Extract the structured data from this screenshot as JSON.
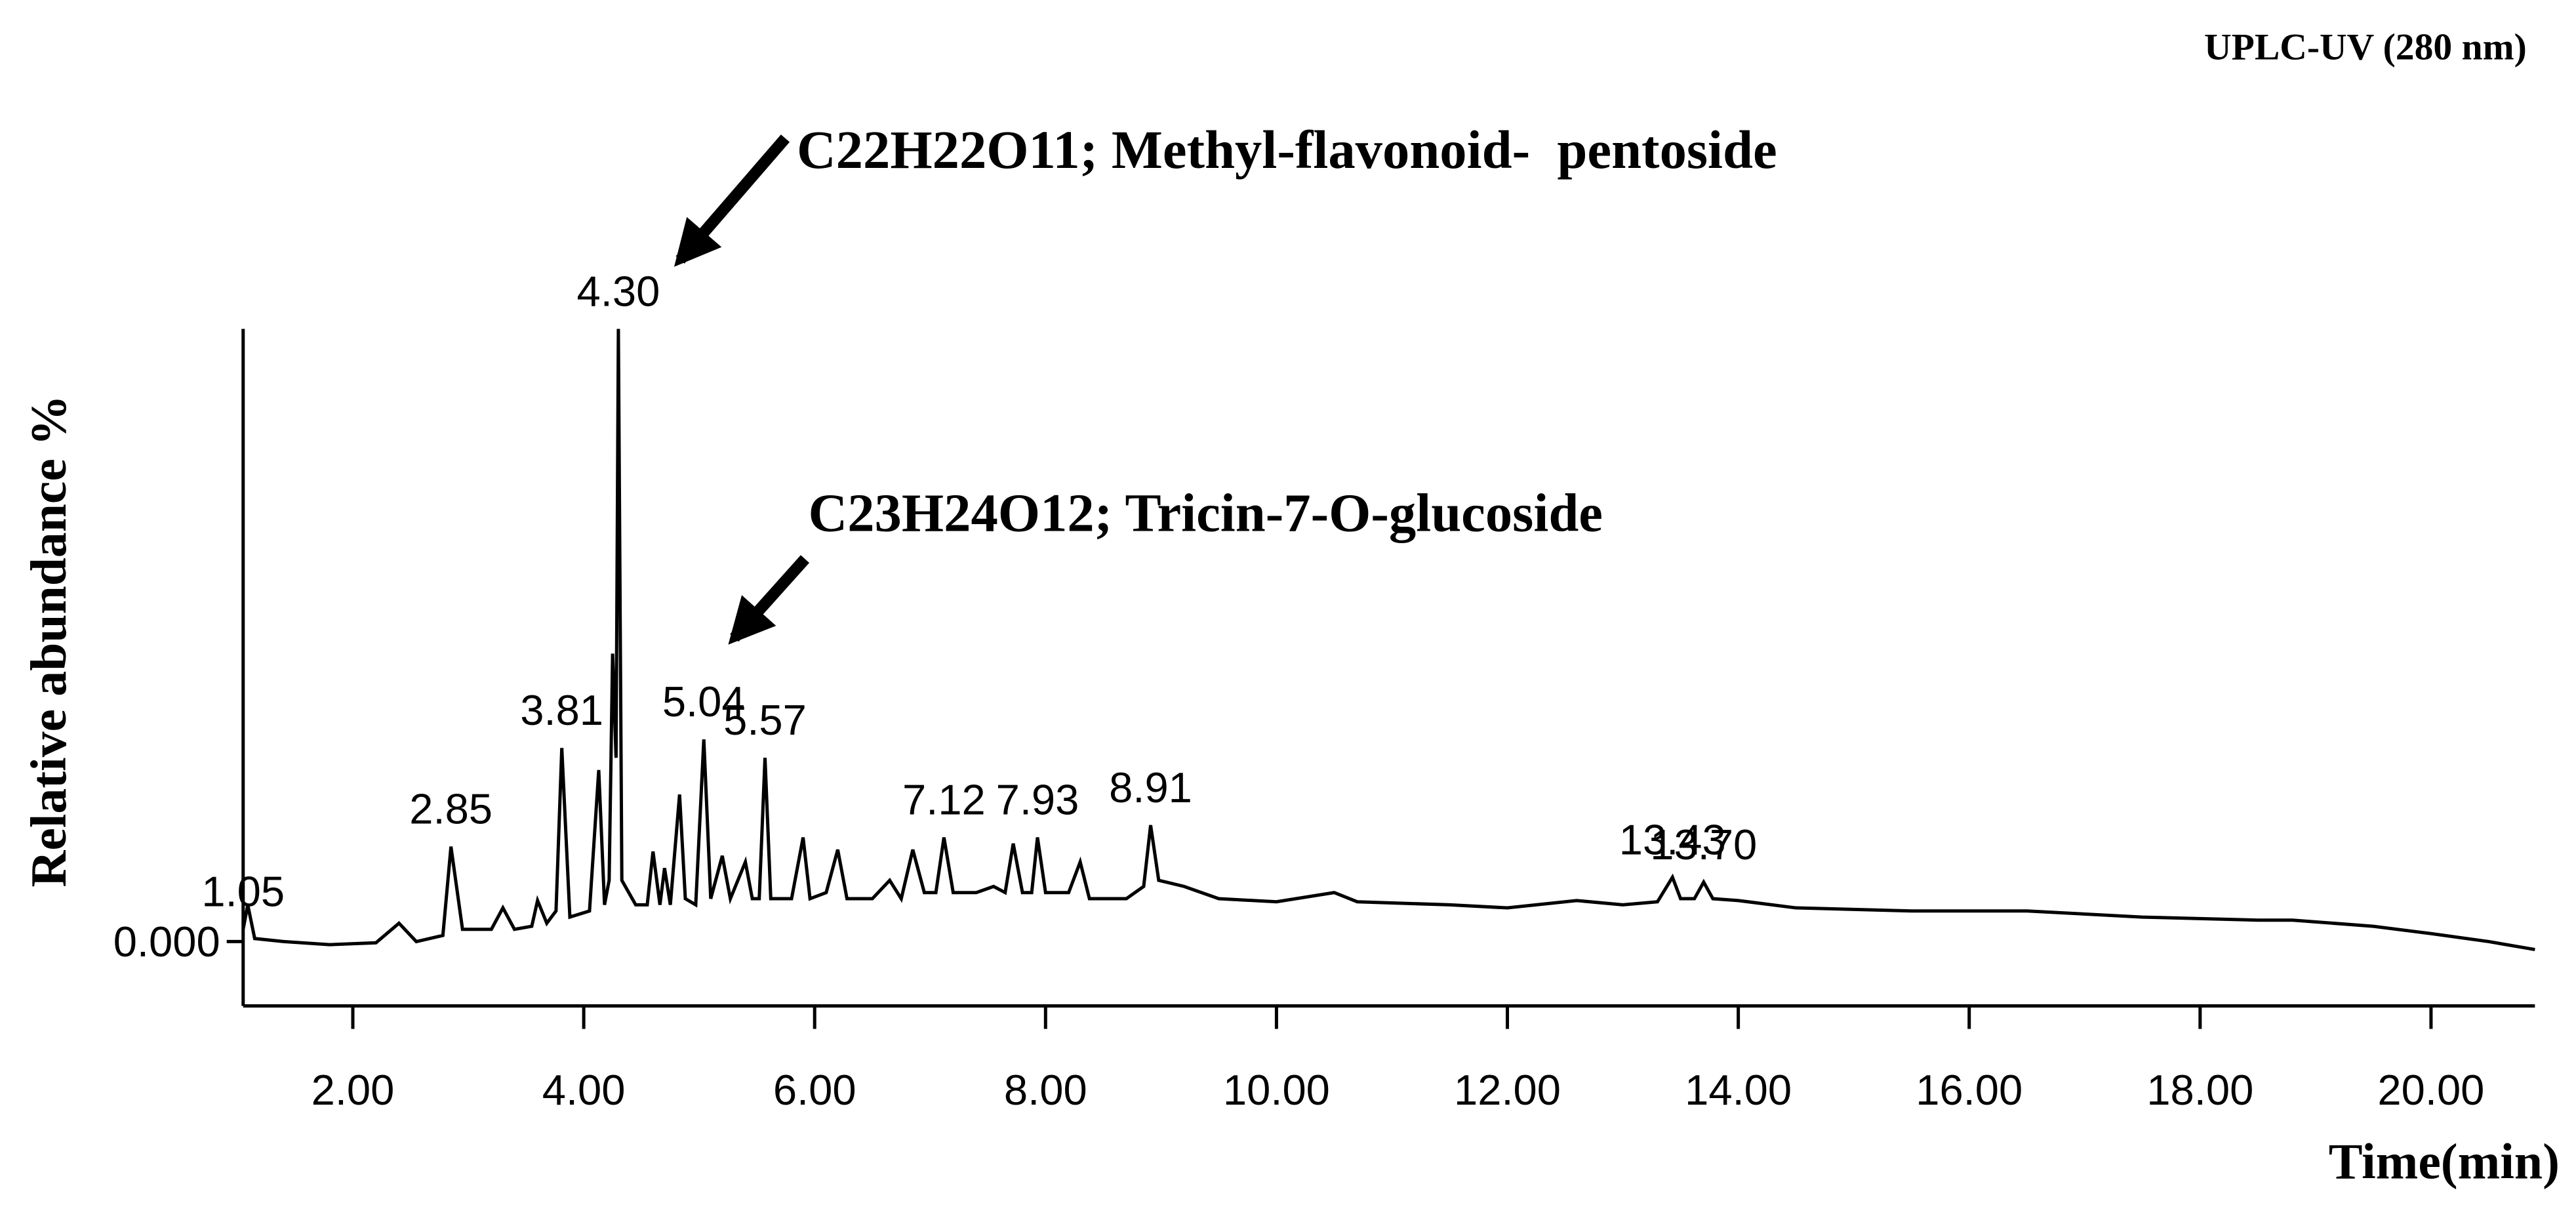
{
  "chart_data": {
    "type": "line",
    "note": "UPLC-UV (280 nm)",
    "x_label": "Time(min)",
    "y_label": "Relative abundance %",
    "color": "#000000",
    "x": [
      1.05,
      1.09,
      1.15,
      1.4,
      1.8,
      2.2,
      2.4,
      2.55,
      2.78,
      2.85,
      2.95,
      3.2,
      3.3,
      3.4,
      3.55,
      3.6,
      3.68,
      3.76,
      3.81,
      3.88,
      4.05,
      4.13,
      4.18,
      4.22,
      4.25,
      4.28,
      4.3,
      4.33,
      4.45,
      4.55,
      4.6,
      4.66,
      4.7,
      4.75,
      4.83,
      4.88,
      4.97,
      5.04,
      5.1,
      5.2,
      5.27,
      5.4,
      5.46,
      5.52,
      5.57,
      5.62,
      5.8,
      5.9,
      5.96,
      6.1,
      6.2,
      6.28,
      6.5,
      6.65,
      6.75,
      6.85,
      6.95,
      7.05,
      7.12,
      7.2,
      7.4,
      7.55,
      7.65,
      7.72,
      7.8,
      7.88,
      7.93,
      8.0,
      8.2,
      8.3,
      8.38,
      8.7,
      8.85,
      8.91,
      8.98,
      9.2,
      9.5,
      10.0,
      10.5,
      10.7,
      11.5,
      12.0,
      12.6,
      13.0,
      13.3,
      13.43,
      13.5,
      13.62,
      13.7,
      13.78,
      14.0,
      14.5,
      15.5,
      16.5,
      17.5,
      18.5,
      18.8,
      19.5,
      20.0,
      20.5,
      20.9
    ],
    "values": [
      0.02,
      0.06,
      0.005,
      0.0,
      -0.005,
      -0.002,
      0.03,
      0.0,
      0.01,
      0.155,
      0.02,
      0.02,
      0.055,
      0.02,
      0.025,
      0.067,
      0.03,
      0.05,
      0.316,
      0.04,
      0.05,
      0.28,
      0.06,
      0.1,
      0.47,
      0.3,
      1.0,
      0.1,
      0.06,
      0.06,
      0.147,
      0.06,
      0.12,
      0.06,
      0.24,
      0.07,
      0.06,
      0.33,
      0.07,
      0.14,
      0.07,
      0.13,
      0.07,
      0.07,
      0.3,
      0.07,
      0.07,
      0.17,
      0.07,
      0.08,
      0.15,
      0.07,
      0.07,
      0.1,
      0.07,
      0.15,
      0.08,
      0.08,
      0.17,
      0.08,
      0.08,
      0.09,
      0.08,
      0.16,
      0.08,
      0.08,
      0.17,
      0.08,
      0.08,
      0.13,
      0.07,
      0.07,
      0.09,
      0.19,
      0.1,
      0.09,
      0.07,
      0.065,
      0.08,
      0.065,
      0.06,
      0.055,
      0.067,
      0.06,
      0.065,
      0.105,
      0.07,
      0.07,
      0.097,
      0.07,
      0.067,
      0.055,
      0.05,
      0.05,
      0.04,
      0.035,
      0.035,
      0.025,
      0.013,
      0.0,
      -0.013
    ],
    "xlim": [
      1.05,
      20.9
    ],
    "ylim": [
      -0.105,
      1.0
    ],
    "xticks": [
      {
        "value": 2,
        "label": "2.00"
      },
      {
        "value": 4,
        "label": "4.00"
      },
      {
        "value": 6,
        "label": "6.00"
      },
      {
        "value": 8,
        "label": "8.00"
      },
      {
        "value": 10,
        "label": "10.00"
      },
      {
        "value": 12,
        "label": "12.00"
      },
      {
        "value": 14,
        "label": "14.00"
      },
      {
        "value": 16,
        "label": "16.00"
      },
      {
        "value": 18,
        "label": "18.00"
      },
      {
        "value": 20,
        "label": "20.00"
      }
    ],
    "yticks": [
      {
        "value": 0,
        "label": "0.000"
      }
    ],
    "peak_labels": [
      {
        "x": 1.05,
        "label": "1.05"
      },
      {
        "x": 2.85,
        "label": "2.85"
      },
      {
        "x": 3.81,
        "label": "3.81"
      },
      {
        "x": 4.3,
        "label": "4.30"
      },
      {
        "x": 5.04,
        "label": "5.04"
      },
      {
        "x": 5.57,
        "label": "5.57"
      },
      {
        "x": 7.12,
        "label": "7.12"
      },
      {
        "x": 7.93,
        "label": "7.93"
      },
      {
        "x": 8.91,
        "label": "8.91"
      },
      {
        "x": 13.43,
        "label": "13.43"
      },
      {
        "x": 13.7,
        "label": "13.70"
      }
    ],
    "annotations": [
      {
        "text": "C22H22O11; Methyl-flavonoid-  pentoside"
      },
      {
        "text": "C23H24O12; Tricin-7-O-glucoside"
      }
    ]
  }
}
